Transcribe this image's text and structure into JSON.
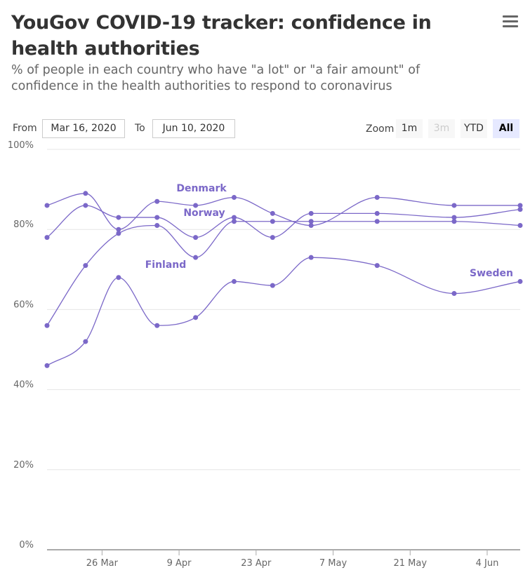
{
  "header": {
    "title": "YouGov COVID-19 tracker: confidence in health authorities",
    "subtitle": "% of people in each country who have \"a lot\" or \"a fair amount\" of confidence in the health authorities to respond to coronavirus"
  },
  "range_selector": {
    "from_label": "From",
    "from_value": "Mar 16, 2020",
    "to_label": "To",
    "to_value": "Jun 10, 2020",
    "zoom_label": "Zoom",
    "zoom_options": [
      "1m",
      "3m",
      "YTD",
      "All"
    ],
    "active_zoom": "All"
  },
  "colors": {
    "series": "#7b68c8",
    "grid": "#e6e6e6",
    "axis": "#aaaaaa"
  },
  "chart_data": {
    "type": "line",
    "title": "YouGov COVID-19 tracker: confidence in health authorities",
    "ylim": [
      0,
      100
    ],
    "yticks": [
      0,
      20,
      40,
      60,
      80,
      100
    ],
    "ytick_labels": [
      "0%",
      "20%",
      "40%",
      "60%",
      "80%",
      "100%"
    ],
    "xlim": [
      0,
      86
    ],
    "xticks": [
      10,
      24,
      38,
      52,
      66,
      80
    ],
    "xtick_labels": [
      "26 Mar",
      "9 Apr",
      "23 Apr",
      "7 May",
      "21 May",
      "4 Jun"
    ],
    "grid": true,
    "series": [
      {
        "name": "Denmark",
        "x": [
          0,
          7,
          13,
          20,
          27,
          34,
          41,
          48,
          60,
          74,
          86
        ],
        "values": [
          86,
          89,
          80,
          87,
          86,
          88,
          84,
          81,
          88,
          86,
          86
        ]
      },
      {
        "name": "Norway",
        "x": [
          0,
          7,
          13,
          20,
          27,
          34,
          41,
          48,
          60,
          74,
          86
        ],
        "values": [
          78,
          86,
          83,
          83,
          78,
          83,
          78,
          84,
          84,
          83,
          85
        ]
      },
      {
        "name": "Finland",
        "x": [
          0,
          7,
          13,
          20,
          27,
          34,
          41,
          48,
          60,
          74,
          86
        ],
        "values": [
          56,
          71,
          79,
          81,
          73,
          82,
          82,
          82,
          82,
          82,
          81
        ]
      },
      {
        "name": "Sweden",
        "x": [
          0,
          7,
          13,
          20,
          27,
          34,
          41,
          48,
          60,
          74,
          86
        ],
        "values": [
          46,
          52,
          68,
          56,
          58,
          67,
          66,
          73,
          71,
          64,
          67
        ]
      }
    ]
  }
}
